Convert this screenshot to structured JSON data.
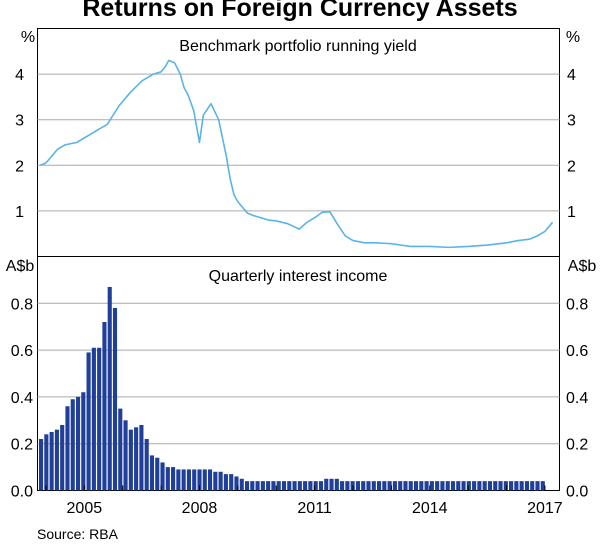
{
  "title": "Returns on Foreign Currency Assets",
  "source": "Source:   RBA",
  "x_ticks": [
    "2005",
    "2008",
    "2011",
    "2014",
    "2017"
  ],
  "chart_data": [
    {
      "type": "line",
      "title": "Benchmark portfolio running yield",
      "ylabel": "%",
      "ylim": [
        0,
        5
      ],
      "yticks": [
        "1",
        "2",
        "3",
        "4"
      ],
      "color": "#5AB4E5",
      "series": [
        {
          "x": [
            2003.85,
            2004.0,
            2004.3,
            2004.5,
            2004.8,
            2005.0,
            2005.3,
            2005.6,
            2005.9,
            2006.2,
            2006.5,
            2006.8,
            2007.0,
            2007.1,
            2007.2,
            2007.35,
            2007.5,
            2007.6,
            2007.7,
            2007.85,
            2008.0,
            2008.1,
            2008.3,
            2008.5,
            2008.7,
            2008.8,
            2008.9,
            2009.0,
            2009.1,
            2009.25,
            2009.4,
            2009.6,
            2009.8,
            2010.0,
            2010.3,
            2010.6,
            2010.8,
            2011.0,
            2011.2,
            2011.4,
            2011.6,
            2011.8,
            2012.0,
            2012.3,
            2012.6,
            2013.0,
            2013.5,
            2014.0,
            2014.5,
            2015.0,
            2015.5,
            2016.0,
            2016.3,
            2016.6,
            2016.8,
            2017.0,
            2017.2
          ],
          "values": [
            2.0,
            2.05,
            2.35,
            2.45,
            2.5,
            2.6,
            2.75,
            2.9,
            3.3,
            3.6,
            3.85,
            4.0,
            4.05,
            4.15,
            4.3,
            4.25,
            4.0,
            3.7,
            3.55,
            3.2,
            2.5,
            3.1,
            3.35,
            3.0,
            2.2,
            1.7,
            1.35,
            1.2,
            1.1,
            0.95,
            0.9,
            0.85,
            0.8,
            0.78,
            0.72,
            0.6,
            0.75,
            0.85,
            0.97,
            0.98,
            0.7,
            0.45,
            0.35,
            0.3,
            0.3,
            0.28,
            0.22,
            0.22,
            0.2,
            0.22,
            0.25,
            0.3,
            0.35,
            0.38,
            0.45,
            0.55,
            0.75
          ]
        }
      ]
    },
    {
      "type": "bar",
      "title": "Quarterly interest income",
      "ylabel": "A$b",
      "ylim": [
        0,
        1.0
      ],
      "yticks": [
        "0.0",
        "0.2",
        "0.4",
        "0.6",
        "0.8"
      ],
      "color": "#1F3F98",
      "values": [
        0.22,
        0.24,
        0.25,
        0.26,
        0.28,
        0.36,
        0.39,
        0.4,
        0.42,
        0.59,
        0.61,
        0.61,
        0.72,
        0.87,
        0.78,
        0.35,
        0.3,
        0.26,
        0.27,
        0.28,
        0.22,
        0.15,
        0.14,
        0.12,
        0.1,
        0.1,
        0.09,
        0.09,
        0.09,
        0.09,
        0.09,
        0.09,
        0.09,
        0.08,
        0.08,
        0.07,
        0.07,
        0.06,
        0.05,
        0.04,
        0.04,
        0.04,
        0.04,
        0.04,
        0.04,
        0.04,
        0.04,
        0.04,
        0.04,
        0.04,
        0.04,
        0.04,
        0.04,
        0.04,
        0.05,
        0.05,
        0.05,
        0.04,
        0.04,
        0.04,
        0.04,
        0.04,
        0.04,
        0.04,
        0.04,
        0.04,
        0.04,
        0.04,
        0.04,
        0.04,
        0.04,
        0.04,
        0.04,
        0.04,
        0.04,
        0.04,
        0.04,
        0.04,
        0.04,
        0.04,
        0.04,
        0.04,
        0.04,
        0.04,
        0.04,
        0.04,
        0.04,
        0.04,
        0.04,
        0.04,
        0.04,
        0.04,
        0.04,
        0.04,
        0.04,
        0.04
      ]
    }
  ]
}
